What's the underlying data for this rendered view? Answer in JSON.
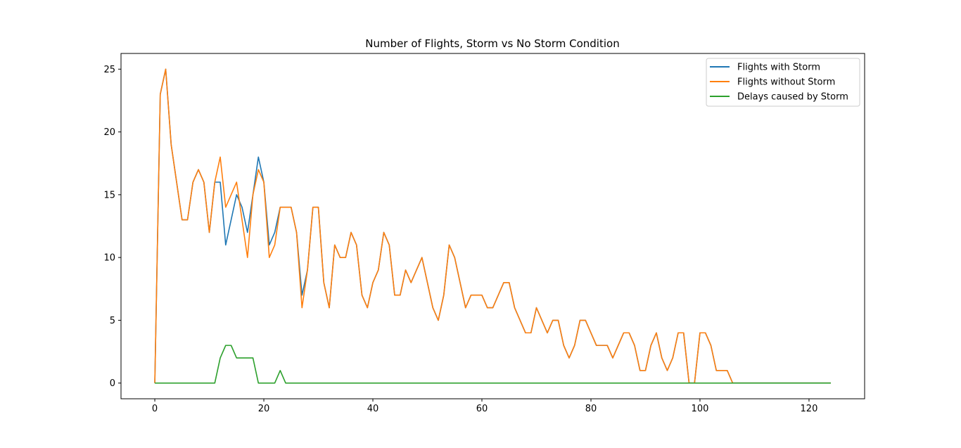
{
  "chart_data": {
    "type": "line",
    "title": "Number of Flights, Storm vs No Storm Condition",
    "xlabel": "",
    "ylabel": "",
    "xlim": [
      -6.2,
      130.2
    ],
    "ylim": [
      -1.25,
      26.25
    ],
    "xticks": [
      0,
      20,
      40,
      60,
      80,
      100,
      120
    ],
    "yticks": [
      0,
      5,
      10,
      15,
      20,
      25
    ],
    "grid": false,
    "legend_position": "top-right",
    "x": [
      0,
      1,
      2,
      3,
      4,
      5,
      6,
      7,
      8,
      9,
      10,
      11,
      12,
      13,
      14,
      15,
      16,
      17,
      18,
      19,
      20,
      21,
      22,
      23,
      24,
      25,
      26,
      27,
      28,
      29,
      30,
      31,
      32,
      33,
      34,
      35,
      36,
      37,
      38,
      39,
      40,
      41,
      42,
      43,
      44,
      45,
      46,
      47,
      48,
      49,
      50,
      51,
      52,
      53,
      54,
      55,
      56,
      57,
      58,
      59,
      60,
      61,
      62,
      63,
      64,
      65,
      66,
      67,
      68,
      69,
      70,
      71,
      72,
      73,
      74,
      75,
      76,
      77,
      78,
      79,
      80,
      81,
      82,
      83,
      84,
      85,
      86,
      87,
      88,
      89,
      90,
      91,
      92,
      93,
      94,
      95,
      96,
      97,
      98,
      99,
      100,
      101,
      102,
      103,
      104,
      105,
      106,
      107,
      108,
      109,
      110,
      111,
      112,
      113,
      114,
      115,
      116,
      117,
      118,
      119,
      120,
      121,
      122,
      123,
      124
    ],
    "series": [
      {
        "name": "Flights with Storm",
        "color": "#1f77b4",
        "values": [
          0,
          23,
          25,
          19,
          16,
          13,
          13,
          16,
          17,
          16,
          12,
          16,
          16,
          11,
          13,
          15,
          14,
          12,
          15,
          18,
          16,
          11,
          12,
          14,
          14,
          14,
          12,
          7,
          9,
          14,
          14,
          8,
          6,
          11,
          10,
          10,
          12,
          11,
          7,
          6,
          8,
          9,
          12,
          11,
          7,
          7,
          9,
          8,
          9,
          10,
          8,
          6,
          5,
          7,
          11,
          10,
          8,
          6,
          7,
          7,
          7,
          6,
          6,
          7,
          8,
          8,
          6,
          5,
          4,
          4,
          6,
          5,
          4,
          5,
          5,
          3,
          2,
          3,
          5,
          5,
          4,
          3,
          3,
          3,
          2,
          3,
          4,
          4,
          3,
          1,
          1,
          3,
          4,
          2,
          1,
          2,
          4,
          4,
          0,
          0,
          4,
          4,
          3,
          1,
          1,
          1,
          0,
          0,
          0,
          0,
          0,
          0,
          0,
          0,
          0,
          0,
          0,
          0,
          0,
          0,
          0,
          0,
          0,
          0,
          0
        ]
      },
      {
        "name": "Flights without Storm",
        "color": "#ff7f0e",
        "values": [
          0,
          23,
          25,
          19,
          16,
          13,
          13,
          16,
          17,
          16,
          12,
          16,
          18,
          14,
          15,
          16,
          13,
          10,
          15,
          17,
          16,
          10,
          11,
          14,
          14,
          14,
          12,
          6,
          9,
          14,
          14,
          8,
          6,
          11,
          10,
          10,
          12,
          11,
          7,
          6,
          8,
          9,
          12,
          11,
          7,
          7,
          9,
          8,
          9,
          10,
          8,
          6,
          5,
          7,
          11,
          10,
          8,
          6,
          7,
          7,
          7,
          6,
          6,
          7,
          8,
          8,
          6,
          5,
          4,
          4,
          6,
          5,
          4,
          5,
          5,
          3,
          2,
          3,
          5,
          5,
          4,
          3,
          3,
          3,
          2,
          3,
          4,
          4,
          3,
          1,
          1,
          3,
          4,
          2,
          1,
          2,
          4,
          4,
          0,
          0,
          4,
          4,
          3,
          1,
          1,
          1,
          0,
          0,
          0,
          0,
          0,
          0,
          0,
          0,
          0,
          0,
          0,
          0,
          0,
          0,
          0,
          0,
          0,
          0,
          0
        ]
      },
      {
        "name": "Delays caused by Storm",
        "color": "#2ca02c",
        "values": [
          0,
          0,
          0,
          0,
          0,
          0,
          0,
          0,
          0,
          0,
          0,
          0,
          2,
          3,
          3,
          2,
          2,
          2,
          2,
          0,
          0,
          0,
          0,
          1,
          0,
          0,
          0,
          0,
          0,
          0,
          0,
          0,
          0,
          0,
          0,
          0,
          0,
          0,
          0,
          0,
          0,
          0,
          0,
          0,
          0,
          0,
          0,
          0,
          0,
          0,
          0,
          0,
          0,
          0,
          0,
          0,
          0,
          0,
          0,
          0,
          0,
          0,
          0,
          0,
          0,
          0,
          0,
          0,
          0,
          0,
          0,
          0,
          0,
          0,
          0,
          0,
          0,
          0,
          0,
          0,
          0,
          0,
          0,
          0,
          0,
          0,
          0,
          0,
          0,
          0,
          0,
          0,
          0,
          0,
          0,
          0,
          0,
          0,
          0,
          0,
          0,
          0,
          0,
          0,
          0,
          0,
          0,
          0,
          0,
          0,
          0,
          0,
          0,
          0,
          0,
          0,
          0,
          0,
          0,
          0,
          0,
          0,
          0,
          0,
          0
        ]
      }
    ]
  }
}
